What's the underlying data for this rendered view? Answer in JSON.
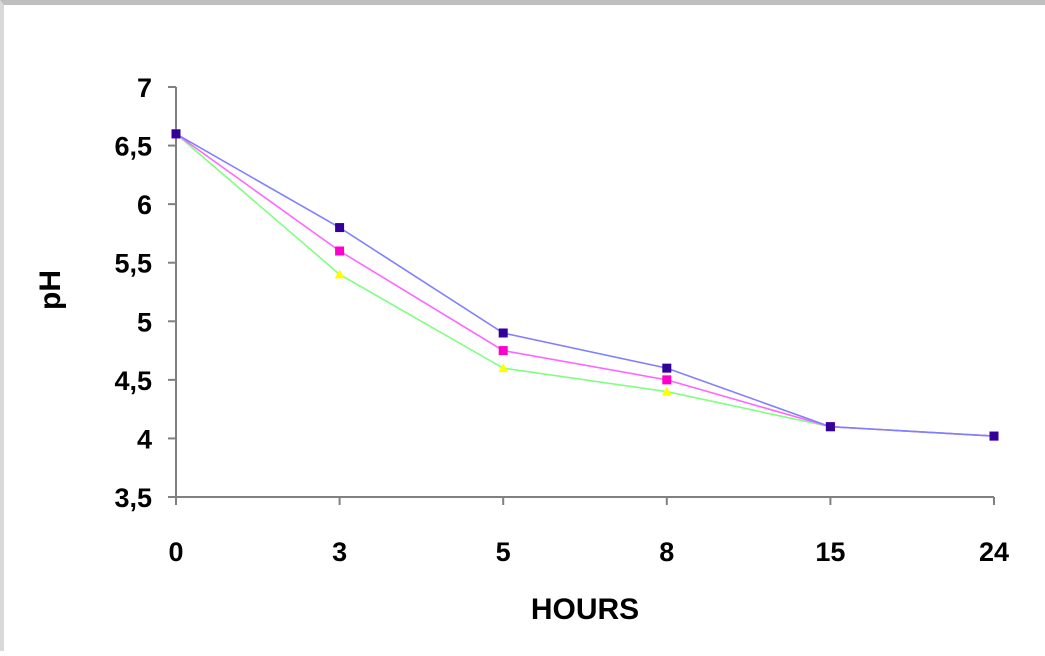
{
  "chart_data": {
    "type": "line",
    "title": "",
    "xlabel": "HOURS",
    "ylabel": "pH",
    "categories": [
      "0",
      "3",
      "5",
      "8",
      "15",
      "24"
    ],
    "yticks": [
      "7",
      "6,5",
      "6",
      "5,5",
      "5",
      "4,5",
      "4",
      "3,5"
    ],
    "ylim": [
      3.5,
      7
    ],
    "grid": false,
    "legend": "none",
    "series": [
      {
        "color": "#8080ff",
        "marker_color": "#330099",
        "marker": "square",
        "values": [
          6.6,
          5.8,
          4.9,
          4.6,
          4.1,
          4.02
        ]
      },
      {
        "color": "#ff66ff",
        "marker_color": "#ff00cc",
        "marker": "square",
        "values": [
          6.6,
          5.6,
          4.75,
          4.5,
          4.1,
          4.02
        ]
      },
      {
        "color": "#80ff80",
        "marker_color": "#ffff00",
        "marker": "triangle",
        "values": [
          6.6,
          5.4,
          4.6,
          4.4,
          4.1,
          4.02
        ]
      }
    ]
  }
}
